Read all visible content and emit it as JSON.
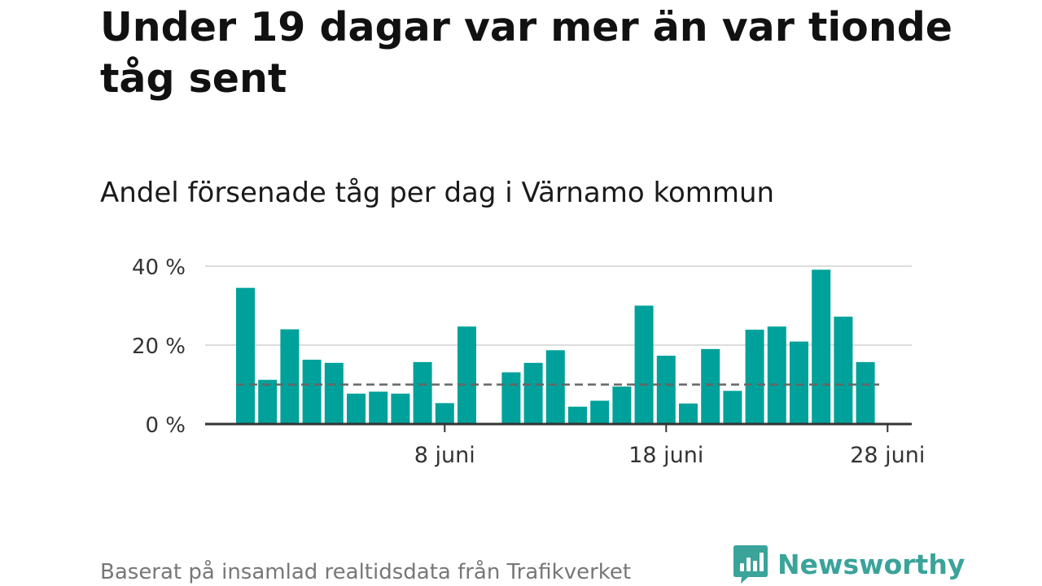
{
  "title": "Under 19 dagar var mer än var tionde tåg sent",
  "subtitle": "Andel försenade tåg per dag i Värnamo kommun",
  "footer": "Baserat på insamlad realtidsdata från Trafikverket",
  "brand": {
    "name": "Newsworthy",
    "logo_icon": "bar-chart-speech-bubble-icon",
    "color": "#3aa39a"
  },
  "colors": {
    "bar": "#00a19a",
    "grid": "#dddddd",
    "axis": "#333333",
    "reference_line": "#666666"
  },
  "chart_data": {
    "type": "bar",
    "title": "Andel försenade tåg per dag i Värnamo kommun",
    "unit": "%",
    "x_range": [
      "2024-05-30",
      "2024-06-30"
    ],
    "x_ticks": [
      {
        "date": "2024-06-08",
        "label": "8 juni"
      },
      {
        "date": "2024-06-18",
        "label": "18 juni"
      },
      {
        "date": "2024-06-28",
        "label": "28 juni"
      }
    ],
    "y_ticks": [
      {
        "value": 0,
        "label": "0 %"
      },
      {
        "value": 20,
        "label": "20 %"
      },
      {
        "value": 40,
        "label": "40 %"
      }
    ],
    "ylim": [
      0,
      40
    ],
    "grid": true,
    "reference_line": {
      "value": 10,
      "style": "dashed"
    },
    "series": [
      {
        "values": [
          {
            "date": "2024-05-30",
            "value": 34.5
          },
          {
            "date": "2024-05-31",
            "value": 11.2
          },
          {
            "date": "2024-06-01",
            "value": 24.0
          },
          {
            "date": "2024-06-02",
            "value": 16.3
          },
          {
            "date": "2024-06-03",
            "value": 15.5
          },
          {
            "date": "2024-06-04",
            "value": 7.7
          },
          {
            "date": "2024-06-05",
            "value": 8.2
          },
          {
            "date": "2024-06-06",
            "value": 7.7
          },
          {
            "date": "2024-06-07",
            "value": 15.7
          },
          {
            "date": "2024-06-08",
            "value": 5.3
          },
          {
            "date": "2024-06-09",
            "value": 24.7
          },
          {
            "date": "2024-06-11",
            "value": 13.1
          },
          {
            "date": "2024-06-12",
            "value": 15.5
          },
          {
            "date": "2024-06-13",
            "value": 18.7
          },
          {
            "date": "2024-06-14",
            "value": 4.4
          },
          {
            "date": "2024-06-15",
            "value": 5.9
          },
          {
            "date": "2024-06-16",
            "value": 9.5
          },
          {
            "date": "2024-06-17",
            "value": 30.0
          },
          {
            "date": "2024-06-18",
            "value": 17.3
          },
          {
            "date": "2024-06-19",
            "value": 5.2
          },
          {
            "date": "2024-06-20",
            "value": 19.0
          },
          {
            "date": "2024-06-21",
            "value": 8.4
          },
          {
            "date": "2024-06-22",
            "value": 23.9
          },
          {
            "date": "2024-06-23",
            "value": 24.7
          },
          {
            "date": "2024-06-24",
            "value": 20.9
          },
          {
            "date": "2024-06-25",
            "value": 39.1
          },
          {
            "date": "2024-06-26",
            "value": 27.2
          },
          {
            "date": "2024-06-27",
            "value": 15.7
          }
        ]
      }
    ]
  }
}
